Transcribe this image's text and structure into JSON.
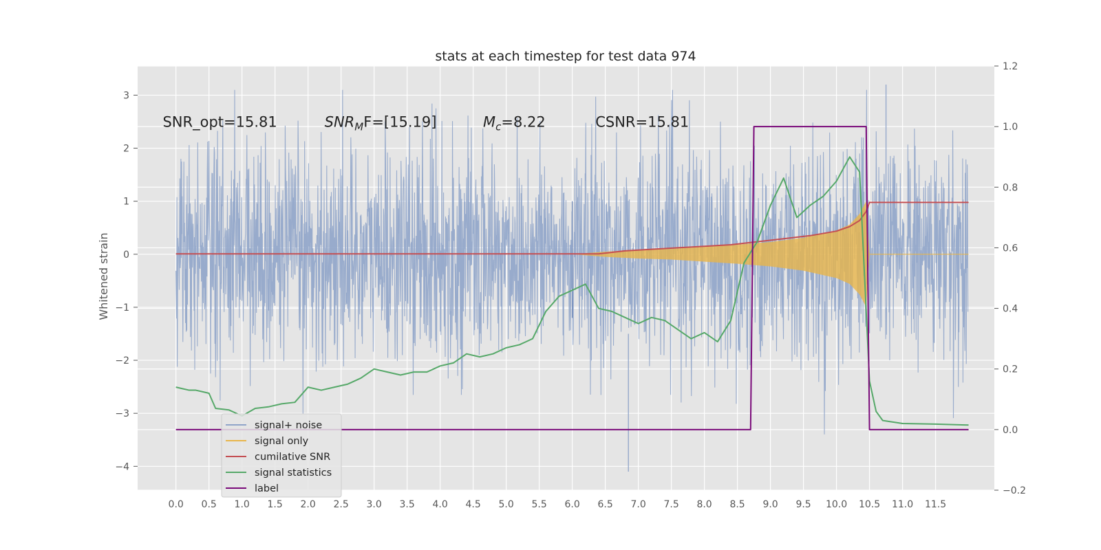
{
  "chart_data": {
    "type": "line",
    "title": "stats at each timestep for test data 974",
    "ylabel": "Whitened strain",
    "xlabel": "",
    "xlim": [
      -0.58,
      12.39
    ],
    "ylim": [
      -4.45,
      3.55
    ],
    "y2lim": [
      -0.2,
      1.2
    ],
    "grid": true,
    "legend_position": "lower-left",
    "x_ticks": [
      "0.0",
      "0.5",
      "1.0",
      "1.5",
      "2.0",
      "2.5",
      "3.0",
      "3.5",
      "4.0",
      "4.5",
      "5.0",
      "5.5",
      "6.0",
      "6.5",
      "7.0",
      "7.5",
      "8.0",
      "8.5",
      "9.0",
      "9.5",
      "10.0",
      "10.5",
      "11.0",
      "11.5"
    ],
    "y_ticks": [
      "3",
      "2",
      "1",
      "0",
      "−1",
      "−2",
      "−3",
      "−4"
    ],
    "y2_ticks": [
      "1.2",
      "1.0",
      "0.8",
      "0.6",
      "0.4",
      "0.2",
      "0.0",
      "−0.2"
    ],
    "annotations": [
      {
        "id": "snr-opt",
        "text": "SNR_opt=15.81",
        "x": -0.2,
        "y": 2.4
      },
      {
        "id": "snr-mf",
        "base": "SNR",
        "sub": "M",
        "rest": "F=[15.19]",
        "x": 2.25,
        "y": 2.4
      },
      {
        "id": "mc",
        "base": "M",
        "sub": "c",
        "rest": "=8.22",
        "x": 4.65,
        "y": 2.4
      },
      {
        "id": "csnr",
        "text": "CSNR=15.81",
        "x": 6.35,
        "y": 2.4
      }
    ],
    "series": [
      {
        "name": "signal+ noise",
        "color": "#8fa4c9",
        "axis": "y",
        "kind": "noise-trace",
        "x_range": [
          0.0,
          11.99
        ],
        "sigma": 1.0,
        "peak_extremes": [
          3.2,
          -4.1
        ]
      },
      {
        "name": "signal only",
        "color": "#e8b54a",
        "axis": "y",
        "kind": "chirp-envelope",
        "x": [
          6.0,
          6.5,
          7.0,
          7.5,
          8.0,
          8.5,
          9.0,
          9.5,
          10.0,
          10.2,
          10.35,
          10.45,
          10.5
        ],
        "amplitude": [
          0.0,
          0.05,
          0.08,
          0.1,
          0.14,
          0.18,
          0.23,
          0.31,
          0.45,
          0.56,
          0.76,
          1.0,
          0.0
        ]
      },
      {
        "name": "cumilative SNR",
        "color": "#c44e52",
        "axis": "y2",
        "x": [
          0.0,
          6.0,
          6.4,
          6.8,
          7.2,
          7.6,
          8.0,
          8.4,
          8.8,
          9.2,
          9.6,
          10.0,
          10.2,
          10.35,
          10.45,
          10.5,
          12.0
        ],
        "y": [
          0.58,
          0.58,
          0.58,
          0.59,
          0.595,
          0.6,
          0.605,
          0.61,
          0.62,
          0.63,
          0.64,
          0.655,
          0.67,
          0.69,
          0.72,
          0.75,
          0.75
        ]
      },
      {
        "name": "signal statistics",
        "color": "#55a868",
        "axis": "y2",
        "x": [
          0.0,
          0.1,
          0.2,
          0.3,
          0.4,
          0.5,
          0.6,
          0.8,
          1.0,
          1.2,
          1.4,
          1.6,
          1.8,
          2.0,
          2.2,
          2.4,
          2.6,
          2.8,
          3.0,
          3.2,
          3.4,
          3.6,
          3.8,
          4.0,
          4.2,
          4.4,
          4.6,
          4.8,
          5.0,
          5.2,
          5.4,
          5.6,
          5.8,
          6.0,
          6.2,
          6.4,
          6.6,
          6.8,
          7.0,
          7.2,
          7.4,
          7.6,
          7.8,
          8.0,
          8.2,
          8.4,
          8.6,
          8.8,
          9.0,
          9.2,
          9.4,
          9.6,
          9.8,
          10.0,
          10.2,
          10.35,
          10.5,
          10.6,
          10.7,
          11.0,
          11.5,
          12.0
        ],
        "y": [
          0.14,
          0.135,
          0.13,
          0.13,
          0.125,
          0.12,
          0.07,
          0.065,
          0.045,
          0.07,
          0.075,
          0.085,
          0.09,
          0.14,
          0.13,
          0.14,
          0.15,
          0.17,
          0.2,
          0.19,
          0.18,
          0.19,
          0.19,
          0.21,
          0.22,
          0.25,
          0.24,
          0.25,
          0.27,
          0.28,
          0.3,
          0.39,
          0.44,
          0.46,
          0.48,
          0.4,
          0.39,
          0.37,
          0.35,
          0.37,
          0.36,
          0.33,
          0.3,
          0.32,
          0.29,
          0.36,
          0.55,
          0.62,
          0.74,
          0.83,
          0.7,
          0.74,
          0.77,
          0.82,
          0.9,
          0.85,
          0.16,
          0.06,
          0.03,
          0.02,
          0.018,
          0.015
        ]
      },
      {
        "name": "label",
        "color": "#7a0a7a",
        "axis": "y2",
        "x": [
          0.0,
          8.7,
          8.75,
          10.45,
          10.5,
          12.0
        ],
        "y": [
          0.0,
          0.0,
          1.0,
          1.0,
          0.0,
          0.0
        ]
      }
    ]
  }
}
